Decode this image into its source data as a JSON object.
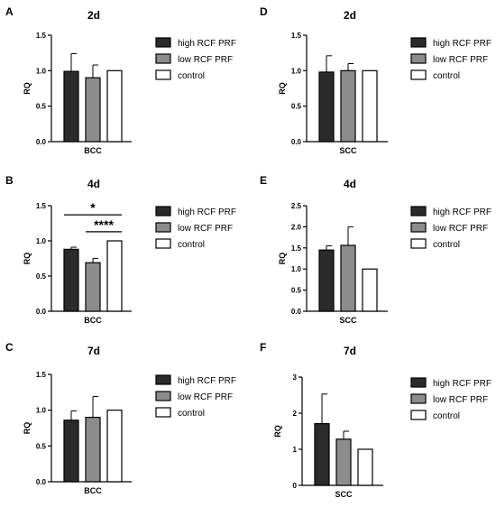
{
  "series_names": [
    "high RCF PRF",
    "low RCF PRF",
    "control"
  ],
  "colors": {
    "high": "#2b2b2b",
    "low": "#8c8c8c",
    "control": "#ffffff",
    "stroke": "#000000"
  },
  "chart_data": [
    {
      "panel": "A",
      "title": "2d",
      "type": "bar",
      "categories": [
        "BCC"
      ],
      "ylabel": "RQ",
      "ylim": [
        0,
        1.5
      ],
      "yticks": [
        "0.0",
        "0.5",
        "1.0",
        "1.5"
      ],
      "series": [
        {
          "name": "high RCF PRF",
          "values": [
            0.99
          ],
          "error": [
            0.25
          ]
        },
        {
          "name": "low RCF PRF",
          "values": [
            0.9
          ],
          "error": [
            0.18
          ]
        },
        {
          "name": "control",
          "values": [
            1.0
          ],
          "error": [
            0
          ]
        }
      ],
      "legend": [
        "high RCF PRF",
        "low RCF PRF",
        "control"
      ],
      "annotations": []
    },
    {
      "panel": "D",
      "title": "2d",
      "type": "bar",
      "categories": [
        "SCC"
      ],
      "ylabel": "RQ",
      "ylim": [
        0,
        1.5
      ],
      "yticks": [
        "0.0",
        "0.5",
        "1.0",
        "1.5"
      ],
      "series": [
        {
          "name": "high RCF PRF",
          "values": [
            0.98
          ],
          "error": [
            0.23
          ]
        },
        {
          "name": "low RCF PRF",
          "values": [
            1.0
          ],
          "error": [
            0.1
          ]
        },
        {
          "name": "control",
          "values": [
            1.0
          ],
          "error": [
            0
          ]
        }
      ],
      "legend": [
        "high RCF PRF",
        "low RCF PRF",
        "control"
      ],
      "annotations": []
    },
    {
      "panel": "B",
      "title": "4d",
      "type": "bar",
      "categories": [
        "BCC"
      ],
      "ylabel": "RQ",
      "ylim": [
        0,
        1.5
      ],
      "yticks": [
        "0.0",
        "0.5",
        "1.0",
        "1.5"
      ],
      "series": [
        {
          "name": "high RCF PRF",
          "values": [
            0.88
          ],
          "error": [
            0.03
          ]
        },
        {
          "name": "low RCF PRF",
          "values": [
            0.69
          ],
          "error": [
            0.06
          ]
        },
        {
          "name": "control",
          "values": [
            1.0
          ],
          "error": [
            0
          ]
        }
      ],
      "legend": [
        "high RCF PRF",
        "low RCF PRF",
        "control"
      ],
      "annotations": [
        {
          "label": "*",
          "from": 0,
          "to": 2,
          "y": 1.37
        },
        {
          "label": "****",
          "from": 1,
          "to": 2,
          "y": 1.13
        }
      ]
    },
    {
      "panel": "E",
      "title": "4d",
      "type": "bar",
      "categories": [
        "SCC"
      ],
      "ylabel": "RQ",
      "ylim": [
        0,
        2.5
      ],
      "yticks": [
        "0.0",
        "0.5",
        "1.0",
        "1.5",
        "2.0",
        "2.5"
      ],
      "series": [
        {
          "name": "high RCF PRF",
          "values": [
            1.45
          ],
          "error": [
            0.1
          ]
        },
        {
          "name": "low RCF PRF",
          "values": [
            1.56
          ],
          "error": [
            0.44
          ]
        },
        {
          "name": "control",
          "values": [
            1.0
          ],
          "error": [
            0
          ]
        }
      ],
      "legend": [
        "high RCF PRF",
        "low RCF PRF",
        "control"
      ],
      "annotations": []
    },
    {
      "panel": "C",
      "title": "7d",
      "type": "bar",
      "categories": [
        "BCC"
      ],
      "ylabel": "RQ",
      "ylim": [
        0,
        1.5
      ],
      "yticks": [
        "0.0",
        "0.5",
        "1.0",
        "1.5"
      ],
      "series": [
        {
          "name": "high RCF PRF",
          "values": [
            0.86
          ],
          "error": [
            0.13
          ]
        },
        {
          "name": "low RCF PRF",
          "values": [
            0.9
          ],
          "error": [
            0.29
          ]
        },
        {
          "name": "control",
          "values": [
            1.0
          ],
          "error": [
            0
          ]
        }
      ],
      "legend": [
        "high RCF PRF",
        "low RCF PRF",
        "control"
      ],
      "annotations": []
    },
    {
      "panel": "F",
      "title": "7d",
      "type": "bar",
      "categories": [
        "SCC"
      ],
      "ylabel": "RQ",
      "ylim": [
        0,
        3
      ],
      "yticks": [
        "0",
        "1",
        "2",
        "3"
      ],
      "series": [
        {
          "name": "high RCF PRF",
          "values": [
            1.71
          ],
          "error": [
            0.82
          ]
        },
        {
          "name": "low RCF PRF",
          "values": [
            1.28
          ],
          "error": [
            0.22
          ]
        },
        {
          "name": "control",
          "values": [
            1.0
          ],
          "error": [
            0
          ]
        }
      ],
      "legend": [
        "high RCF PRF",
        "low RCF PRF",
        "control"
      ],
      "annotations": []
    }
  ]
}
